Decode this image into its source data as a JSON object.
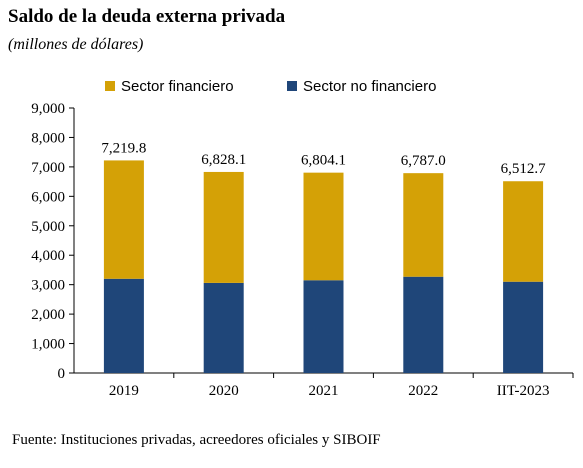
{
  "title": "Saldo de la deuda externa privada",
  "subtitle": "(millones de dólares)",
  "footer": "Fuente: Instituciones privadas, acreedores oficiales y SIBOIF",
  "colors": {
    "financiero": "#D4A106",
    "no_financiero": "#1F4679"
  },
  "chart_data": {
    "type": "bar",
    "stacked": true,
    "categories": [
      "2019",
      "2020",
      "2021",
      "2022",
      "IIT-2023"
    ],
    "series": [
      {
        "name": "Sector no financiero",
        "values": [
          3200,
          3060,
          3150,
          3270,
          3100
        ]
      },
      {
        "name": "Sector financiero",
        "values": [
          4019.8,
          3768.1,
          3654.1,
          3517.0,
          3412.7
        ]
      }
    ],
    "totals": [
      "7,219.8",
      "6,828.1",
      "6,804.1",
      "6,787.0",
      "6,512.7"
    ],
    "totals_values": [
      7219.8,
      6828.1,
      6804.1,
      6787.0,
      6512.7
    ],
    "ylim": [
      0,
      9000
    ],
    "yticks": [
      0,
      1000,
      2000,
      3000,
      4000,
      5000,
      6000,
      7000,
      8000,
      9000
    ],
    "ytick_labels": [
      "0",
      "1,000",
      "2,000",
      "3,000",
      "4,000",
      "5,000",
      "6,000",
      "7,000",
      "8,000",
      "9,000"
    ],
    "legend": [
      "Sector financiero",
      "Sector no financiero"
    ],
    "legend_position": "top",
    "grid": false
  }
}
